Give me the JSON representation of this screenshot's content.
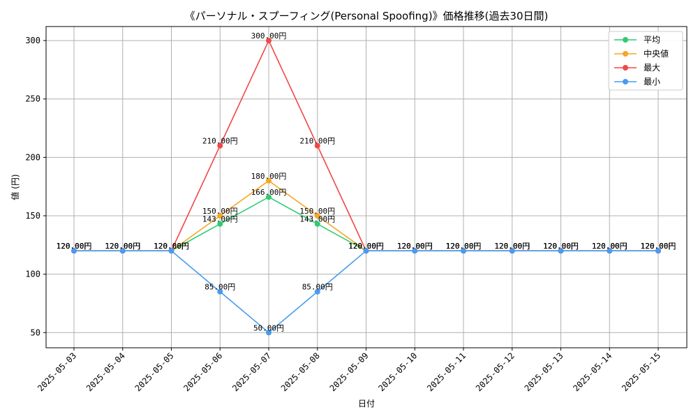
{
  "chart_data": {
    "type": "line",
    "title": "《パーソナル・スプーフィング(Personal Spoofing)》価格推移(過去30日間)",
    "xlabel": "日付",
    "ylabel": "値 (円)",
    "x": [
      "2025-05-03",
      "2025-05-04",
      "2025-05-05",
      "2025-05-06",
      "2025-05-07",
      "2025-05-08",
      "2025-05-09",
      "2025-05-10",
      "2025-05-11",
      "2025-05-12",
      "2025-05-13",
      "2025-05-14",
      "2025-05-15"
    ],
    "ylim": [
      37,
      312
    ],
    "yticks": [
      50,
      100,
      150,
      200,
      250,
      300
    ],
    "grid": true,
    "legend_position": "top-right",
    "value_suffix": "円",
    "series": [
      {
        "name": "平均",
        "color": "#2ecc71",
        "values": [
          120,
          120,
          120,
          143,
          166,
          143,
          120,
          120,
          120,
          120,
          120,
          120,
          120
        ]
      },
      {
        "name": "中央値",
        "color": "#f5a623",
        "values": [
          120,
          120,
          120,
          150,
          180,
          150,
          120,
          120,
          120,
          120,
          120,
          120,
          120
        ]
      },
      {
        "name": "最大",
        "color": "#f04848",
        "values": [
          120,
          120,
          120,
          210,
          300,
          210,
          120,
          120,
          120,
          120,
          120,
          120,
          120
        ]
      },
      {
        "name": "最小",
        "color": "#4a9af0",
        "values": [
          120,
          120,
          120,
          85,
          50,
          85,
          120,
          120,
          120,
          120,
          120,
          120,
          120
        ]
      }
    ]
  }
}
